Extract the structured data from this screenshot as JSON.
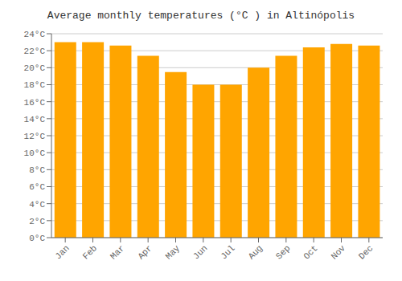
{
  "chart_data": {
    "type": "bar",
    "title": "Average monthly temperatures (°C ) in Altinópolis",
    "categories": [
      "Jan",
      "Feb",
      "Mar",
      "Apr",
      "May",
      "Jun",
      "Jul",
      "Aug",
      "Sep",
      "Oct",
      "Nov",
      "Dec"
    ],
    "values": [
      23.0,
      23.0,
      22.6,
      21.4,
      19.5,
      18.0,
      18.0,
      20.0,
      21.4,
      22.4,
      22.8,
      22.6
    ],
    "color": "#FFA500",
    "ylim": [
      0,
      24
    ],
    "yticks": [
      {
        "value": 0,
        "label": "0°C"
      },
      {
        "value": 2,
        "label": "2°C"
      },
      {
        "value": 4,
        "label": "4°C"
      },
      {
        "value": 6,
        "label": "6°C"
      },
      {
        "value": 8,
        "label": "8°C"
      },
      {
        "value": 10,
        "label": "10°C"
      },
      {
        "value": 12,
        "label": "12°C"
      },
      {
        "value": 14,
        "label": "14°C"
      },
      {
        "value": 16,
        "label": "16°C"
      },
      {
        "value": 18,
        "label": "18°C"
      },
      {
        "value": 20,
        "label": "20°C"
      },
      {
        "value": 22,
        "label": "22°C"
      },
      {
        "value": 24,
        "label": "24°C"
      }
    ],
    "grid": true
  }
}
